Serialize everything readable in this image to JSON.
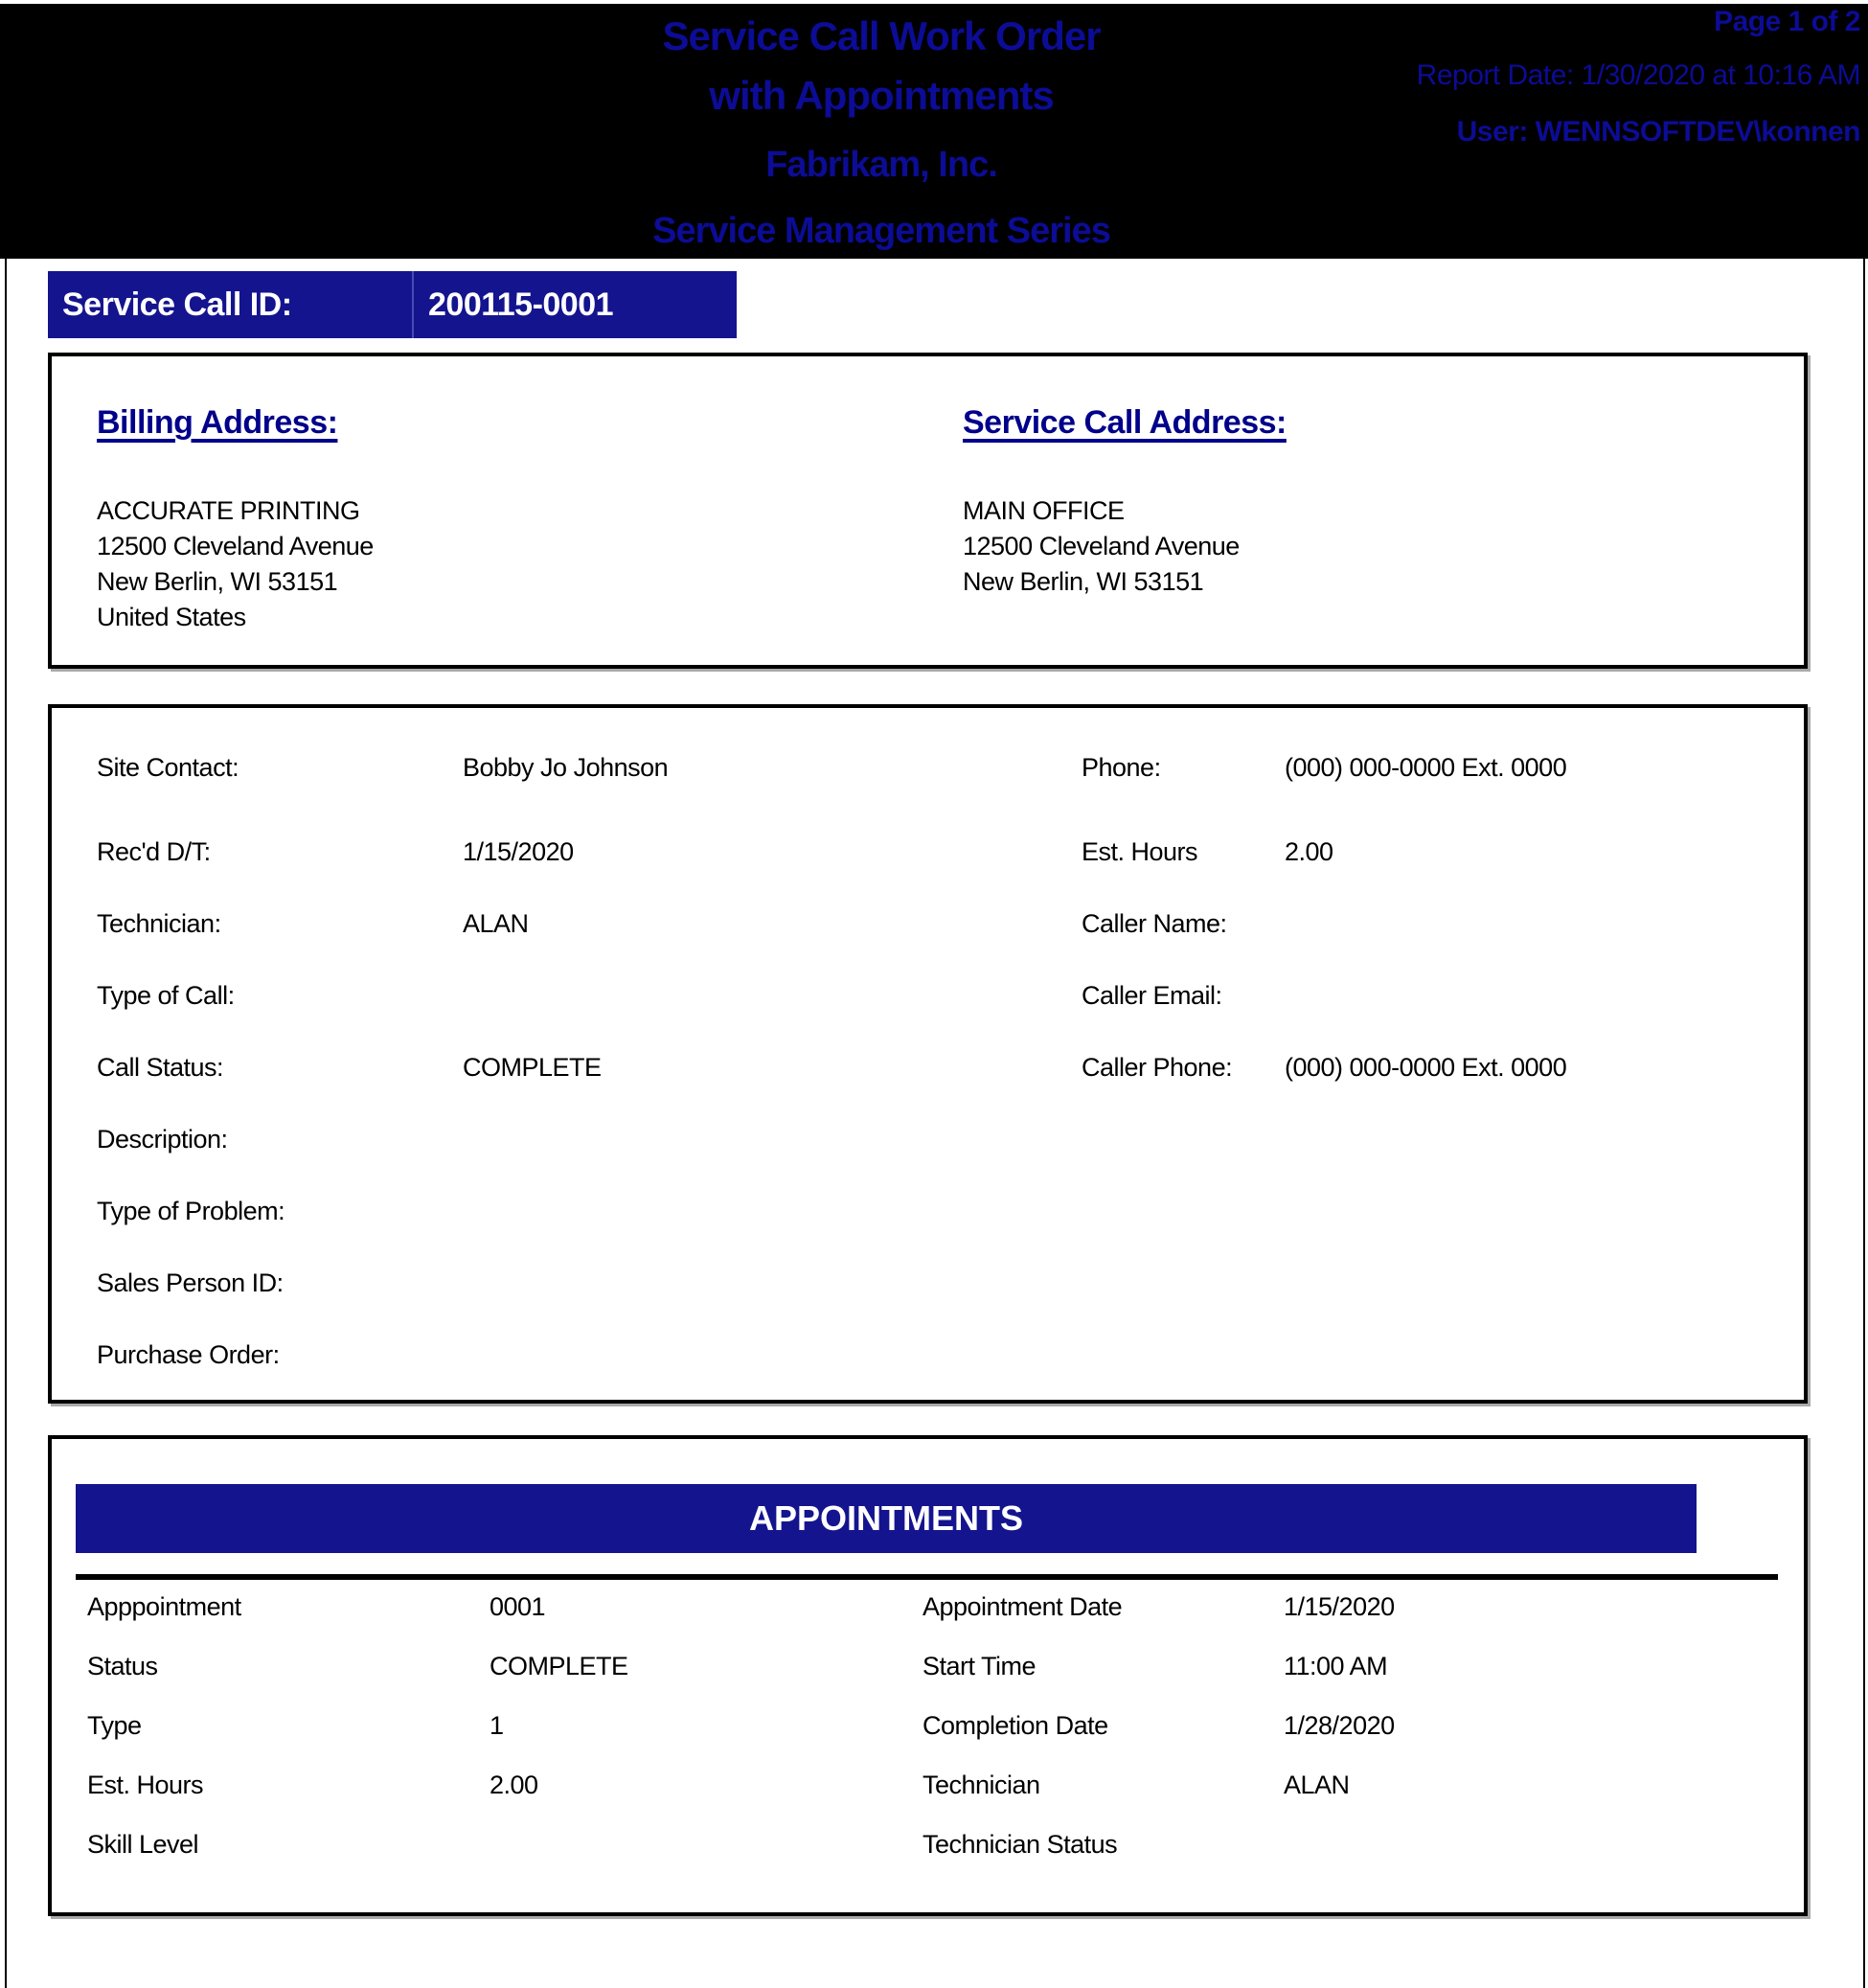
{
  "header": {
    "title_line1": "Service Call Work Order",
    "title_line2": "with Appointments",
    "company": "Fabrikam, Inc.",
    "series": "Service Management Series",
    "page_label": "Page 1 of 2",
    "report_date": "Report Date: 1/30/2020 at 10:16 AM",
    "user": "User: WENNSOFTDEV\\konnen"
  },
  "service_call": {
    "id_label": "Service Call ID:",
    "id_value": "200115-0001"
  },
  "addresses": {
    "billing": {
      "heading": "Billing Address:",
      "line1": "ACCURATE PRINTING",
      "line2": "12500 Cleveland Avenue",
      "line3": "New Berlin, WI 53151",
      "line4": "United States"
    },
    "service": {
      "heading": "Service Call Address:",
      "line1": "MAIN OFFICE",
      "line2": "12500 Cleveland Avenue",
      "line3": "New Berlin, WI 53151",
      "line4": ""
    }
  },
  "details": {
    "rows": [
      {
        "label": "Site Contact:",
        "value": "Bobby Jo Johnson",
        "label2": "Phone:",
        "value2": "(000) 000-0000 Ext. 0000"
      },
      {
        "label": "Rec'd D/T:",
        "value": "1/15/2020",
        "label2": "Est. Hours",
        "value2": "2.00"
      },
      {
        "label": "Technician:",
        "value": "ALAN",
        "label2": "Caller Name:",
        "value2": ""
      },
      {
        "label": "Type of Call:",
        "value": "",
        "label2": "Caller Email:",
        "value2": ""
      },
      {
        "label": "Call Status:",
        "value": "COMPLETE",
        "label2": "Caller Phone:",
        "value2": "(000) 000-0000 Ext. 0000"
      },
      {
        "label": "Description:",
        "value": "",
        "label2": "",
        "value2": ""
      },
      {
        "label": "Type of Problem:",
        "value": "",
        "label2": "",
        "value2": ""
      },
      {
        "label": "Sales Person ID:",
        "value": "",
        "label2": "",
        "value2": ""
      },
      {
        "label": "Purchase Order:",
        "value": "",
        "label2": "",
        "value2": ""
      }
    ]
  },
  "appointments": {
    "heading": "APPOINTMENTS",
    "rows": [
      {
        "label": "Apppointment",
        "value": "0001",
        "label2": "Appointment Date",
        "value2": "1/15/2020"
      },
      {
        "label": "Status",
        "value": "COMPLETE",
        "label2": "Start Time",
        "value2": "11:00 AM"
      },
      {
        "label": "Type",
        "value": "1",
        "label2": "Completion Date",
        "value2": "1/28/2020"
      },
      {
        "label": "Est. Hours",
        "value": "2.00",
        "label2": "Technician",
        "value2": "ALAN"
      },
      {
        "label": "Skill Level",
        "value": "",
        "label2": "Technician Status",
        "value2": ""
      }
    ]
  },
  "colors": {
    "header_bg": "#000000",
    "title_text": "#0C0C96",
    "accent_bar_bg": "#14148F",
    "accent_bar_text": "#FFFFFF",
    "body_text": "#000000",
    "box_border": "#000000"
  }
}
